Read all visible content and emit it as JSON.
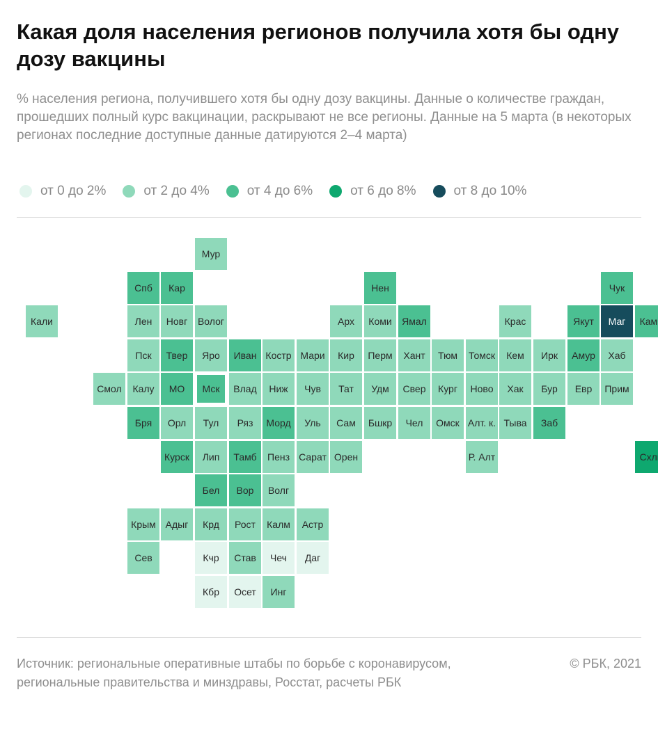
{
  "header": {
    "title": "Какая доля населения регионов получила хотя бы одну дозу вакцины",
    "subtitle": "% населения региона, получившего хотя бы одну дозу вакцины. Данные о количестве граждан, прошедших полный курс вакцинации, раскрывают не все регионы. Данные на 5 марта (в некоторых регионах последние доступные данные датируются 2–4 марта)"
  },
  "legend": {
    "bins": [
      {
        "label": "от 0 до 2%",
        "color": "#e3f5ee"
      },
      {
        "label": "от 2 до 4%",
        "color": "#8fd9ba"
      },
      {
        "label": "от 4 до 6%",
        "color": "#4bc092"
      },
      {
        "label": "от 6 до 8%",
        "color": "#0ea86f"
      },
      {
        "label": "от 8 до 10%",
        "color": "#164c5c"
      }
    ]
  },
  "chart_data": {
    "type": "heatmap",
    "title": "Какая доля населения регионов получила хотя бы одну дозу вакцины",
    "units": "% населения",
    "bins": [
      "от 0 до 2%",
      "от 2 до 4%",
      "от 4 до 6%",
      "от 6 до 8%",
      "от 8 до 10%"
    ],
    "highlighted": "Мск",
    "regions": [
      {
        "name": "Мур",
        "row": 0,
        "col": 5,
        "bin": 1
      },
      {
        "name": "Спб",
        "row": 1,
        "col": 3,
        "bin": 2
      },
      {
        "name": "Кар",
        "row": 1,
        "col": 4,
        "bin": 2
      },
      {
        "name": "Нен",
        "row": 1,
        "col": 10,
        "bin": 2
      },
      {
        "name": "Чук",
        "row": 1,
        "col": 17,
        "bin": 2
      },
      {
        "name": "Кали",
        "row": 2,
        "col": 0,
        "bin": 1
      },
      {
        "name": "Лен",
        "row": 2,
        "col": 3,
        "bin": 1
      },
      {
        "name": "Новг",
        "row": 2,
        "col": 4,
        "bin": 1
      },
      {
        "name": "Волог",
        "row": 2,
        "col": 5,
        "bin": 1
      },
      {
        "name": "Арх",
        "row": 2,
        "col": 9,
        "bin": 1
      },
      {
        "name": "Коми",
        "row": 2,
        "col": 10,
        "bin": 1
      },
      {
        "name": "Ямал",
        "row": 2,
        "col": 11,
        "bin": 2
      },
      {
        "name": "Крас",
        "row": 2,
        "col": 14,
        "bin": 1
      },
      {
        "name": "Якут",
        "row": 2,
        "col": 16,
        "bin": 2
      },
      {
        "name": "Маг",
        "row": 2,
        "col": 17,
        "bin": 4
      },
      {
        "name": "Камч",
        "row": 2,
        "col": 18,
        "bin": 2
      },
      {
        "name": "Пск",
        "row": 3,
        "col": 3,
        "bin": 1
      },
      {
        "name": "Твер",
        "row": 3,
        "col": 4,
        "bin": 2
      },
      {
        "name": "Яро",
        "row": 3,
        "col": 5,
        "bin": 1
      },
      {
        "name": "Иван",
        "row": 3,
        "col": 6,
        "bin": 2
      },
      {
        "name": "Костр",
        "row": 3,
        "col": 7,
        "bin": 1
      },
      {
        "name": "Мари",
        "row": 3,
        "col": 8,
        "bin": 1
      },
      {
        "name": "Кир",
        "row": 3,
        "col": 9,
        "bin": 1
      },
      {
        "name": "Перм",
        "row": 3,
        "col": 10,
        "bin": 1
      },
      {
        "name": "Хант",
        "row": 3,
        "col": 11,
        "bin": 1
      },
      {
        "name": "Тюм",
        "row": 3,
        "col": 12,
        "bin": 1
      },
      {
        "name": "Томск",
        "row": 3,
        "col": 13,
        "bin": 1
      },
      {
        "name": "Кем",
        "row": 3,
        "col": 14,
        "bin": 1
      },
      {
        "name": "Ирк",
        "row": 3,
        "col": 15,
        "bin": 1
      },
      {
        "name": "Амур",
        "row": 3,
        "col": 16,
        "bin": 2
      },
      {
        "name": "Хаб",
        "row": 3,
        "col": 17,
        "bin": 1
      },
      {
        "name": "Смол",
        "row": 4,
        "col": 2,
        "bin": 1
      },
      {
        "name": "Калу",
        "row": 4,
        "col": 3,
        "bin": 1
      },
      {
        "name": "МО",
        "row": 4,
        "col": 4,
        "bin": 2
      },
      {
        "name": "Мск",
        "row": 4,
        "col": 5,
        "bin": 2
      },
      {
        "name": "Влад",
        "row": 4,
        "col": 6,
        "bin": 1
      },
      {
        "name": "Ниж",
        "row": 4,
        "col": 7,
        "bin": 1
      },
      {
        "name": "Чув",
        "row": 4,
        "col": 8,
        "bin": 1
      },
      {
        "name": "Тат",
        "row": 4,
        "col": 9,
        "bin": 1
      },
      {
        "name": "Удм",
        "row": 4,
        "col": 10,
        "bin": 1
      },
      {
        "name": "Свер",
        "row": 4,
        "col": 11,
        "bin": 1
      },
      {
        "name": "Кург",
        "row": 4,
        "col": 12,
        "bin": 1
      },
      {
        "name": "Ново",
        "row": 4,
        "col": 13,
        "bin": 1
      },
      {
        "name": "Хак",
        "row": 4,
        "col": 14,
        "bin": 1
      },
      {
        "name": "Бур",
        "row": 4,
        "col": 15,
        "bin": 1
      },
      {
        "name": "Евр",
        "row": 4,
        "col": 16,
        "bin": 1
      },
      {
        "name": "Прим",
        "row": 4,
        "col": 17,
        "bin": 1
      },
      {
        "name": "Бря",
        "row": 5,
        "col": 3,
        "bin": 2
      },
      {
        "name": "Орл",
        "row": 5,
        "col": 4,
        "bin": 1
      },
      {
        "name": "Тул",
        "row": 5,
        "col": 5,
        "bin": 1
      },
      {
        "name": "Ряз",
        "row": 5,
        "col": 6,
        "bin": 1
      },
      {
        "name": "Морд",
        "row": 5,
        "col": 7,
        "bin": 2
      },
      {
        "name": "Уль",
        "row": 5,
        "col": 8,
        "bin": 1
      },
      {
        "name": "Сам",
        "row": 5,
        "col": 9,
        "bin": 1
      },
      {
        "name": "Бшкр",
        "row": 5,
        "col": 10,
        "bin": 1
      },
      {
        "name": "Чел",
        "row": 5,
        "col": 11,
        "bin": 1
      },
      {
        "name": "Омск",
        "row": 5,
        "col": 12,
        "bin": 1
      },
      {
        "name": "Алт. к.",
        "row": 5,
        "col": 13,
        "bin": 1
      },
      {
        "name": "Тыва",
        "row": 5,
        "col": 14,
        "bin": 1
      },
      {
        "name": "Заб",
        "row": 5,
        "col": 15,
        "bin": 2
      },
      {
        "name": "Курск",
        "row": 6,
        "col": 4,
        "bin": 2
      },
      {
        "name": "Лип",
        "row": 6,
        "col": 5,
        "bin": 1
      },
      {
        "name": "Тамб",
        "row": 6,
        "col": 6,
        "bin": 2
      },
      {
        "name": "Пенз",
        "row": 6,
        "col": 7,
        "bin": 1
      },
      {
        "name": "Сарат",
        "row": 6,
        "col": 8,
        "bin": 1
      },
      {
        "name": "Орен",
        "row": 6,
        "col": 9,
        "bin": 1
      },
      {
        "name": "Р. Алт",
        "row": 6,
        "col": 13,
        "bin": 1
      },
      {
        "name": "Схлн",
        "row": 6,
        "col": 18,
        "bin": 3
      },
      {
        "name": "Бел",
        "row": 7,
        "col": 5,
        "bin": 2
      },
      {
        "name": "Вор",
        "row": 7,
        "col": 6,
        "bin": 2
      },
      {
        "name": "Волг",
        "row": 7,
        "col": 7,
        "bin": 1
      },
      {
        "name": "Крым",
        "row": 8,
        "col": 3,
        "bin": 1
      },
      {
        "name": "Адыг",
        "row": 8,
        "col": 4,
        "bin": 1
      },
      {
        "name": "Крд",
        "row": 8,
        "col": 5,
        "bin": 1
      },
      {
        "name": "Рост",
        "row": 8,
        "col": 6,
        "bin": 1
      },
      {
        "name": "Калм",
        "row": 8,
        "col": 7,
        "bin": 1
      },
      {
        "name": "Астр",
        "row": 8,
        "col": 8,
        "bin": 1
      },
      {
        "name": "Сев",
        "row": 9,
        "col": 3,
        "bin": 1
      },
      {
        "name": "Кчр",
        "row": 9,
        "col": 5,
        "bin": 0
      },
      {
        "name": "Став",
        "row": 9,
        "col": 6,
        "bin": 1
      },
      {
        "name": "Чеч",
        "row": 9,
        "col": 7,
        "bin": 0
      },
      {
        "name": "Даг",
        "row": 9,
        "col": 8,
        "bin": 0
      },
      {
        "name": "Кбр",
        "row": 10,
        "col": 5,
        "bin": 0
      },
      {
        "name": "Осет",
        "row": 10,
        "col": 6,
        "bin": 0
      },
      {
        "name": "Инг",
        "row": 10,
        "col": 7,
        "bin": 1
      }
    ]
  },
  "footer": {
    "source": "Источник:  региональные оперативные штабы по борьбе с коронавирусом, региональные правительства и минздравы, Росстат, расчеты РБК",
    "copyright": "© РБК, 2021"
  }
}
